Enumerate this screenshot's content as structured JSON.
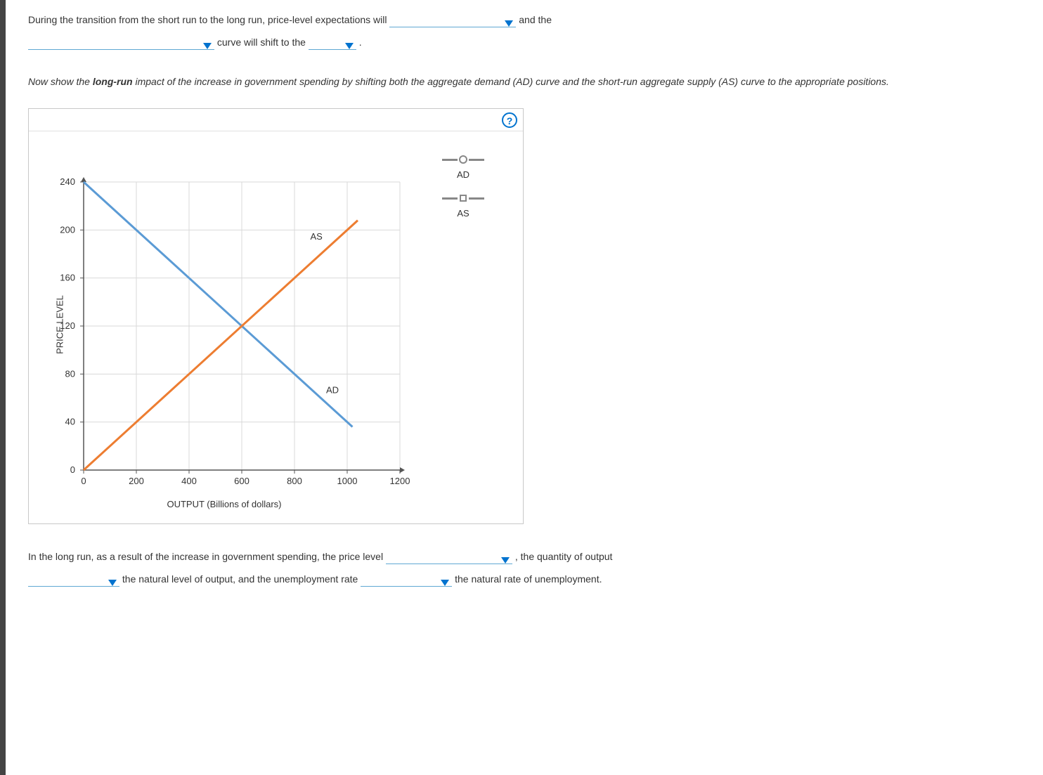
{
  "sentence1": {
    "part1": "During the transition from the short run to the long run, price-level expectations will",
    "part2": "and the",
    "part3": "curve will shift to the",
    "part4": "."
  },
  "instruction": {
    "pre": "Now show the ",
    "bold": "long-run",
    "post": " impact of the increase in government spending by shifting both the aggregate demand (AD) curve and the short-run aggregate supply (AS) curve to the appropriate positions."
  },
  "chart": {
    "type": "line",
    "ylabel": "PRICE LEVEL",
    "xlabel": "OUTPUT (Billions of dollars)",
    "xlim": [
      0,
      1200
    ],
    "ylim": [
      0,
      240
    ],
    "xticks": [
      0,
      200,
      400,
      600,
      800,
      1000,
      1200
    ],
    "yticks": [
      0,
      40,
      80,
      120,
      160,
      200,
      240
    ],
    "grid_color": "#d9d9d9",
    "axis_color": "#555555",
    "tick_font_size": 13,
    "label_font_size": 13,
    "background_color": "#ffffff",
    "series": {
      "AD": {
        "label": "AD",
        "color": "#5b9bd5",
        "line_width": 3,
        "points": [
          [
            0,
            240
          ],
          [
            1020,
            36
          ]
        ],
        "curve_label_pos": [
          920,
          64
        ]
      },
      "AS": {
        "label": "AS",
        "color": "#ed7d31",
        "line_width": 3,
        "points": [
          [
            0,
            0
          ],
          [
            1040,
            208
          ]
        ],
        "curve_label_pos": [
          860,
          192
        ]
      }
    },
    "legend": {
      "AD": {
        "label": "AD",
        "marker": "circle",
        "marker_color": "#888888"
      },
      "AS": {
        "label": "AS",
        "marker": "square",
        "marker_color": "#888888"
      }
    },
    "help_icon": "?"
  },
  "sentence2": {
    "part1": "In the long run, as a result of the increase in government spending, the price level",
    "part2": ", the quantity of output",
    "part3": "the natural level of output, and the unemployment rate",
    "part4": "the natural rate of unemployment."
  }
}
